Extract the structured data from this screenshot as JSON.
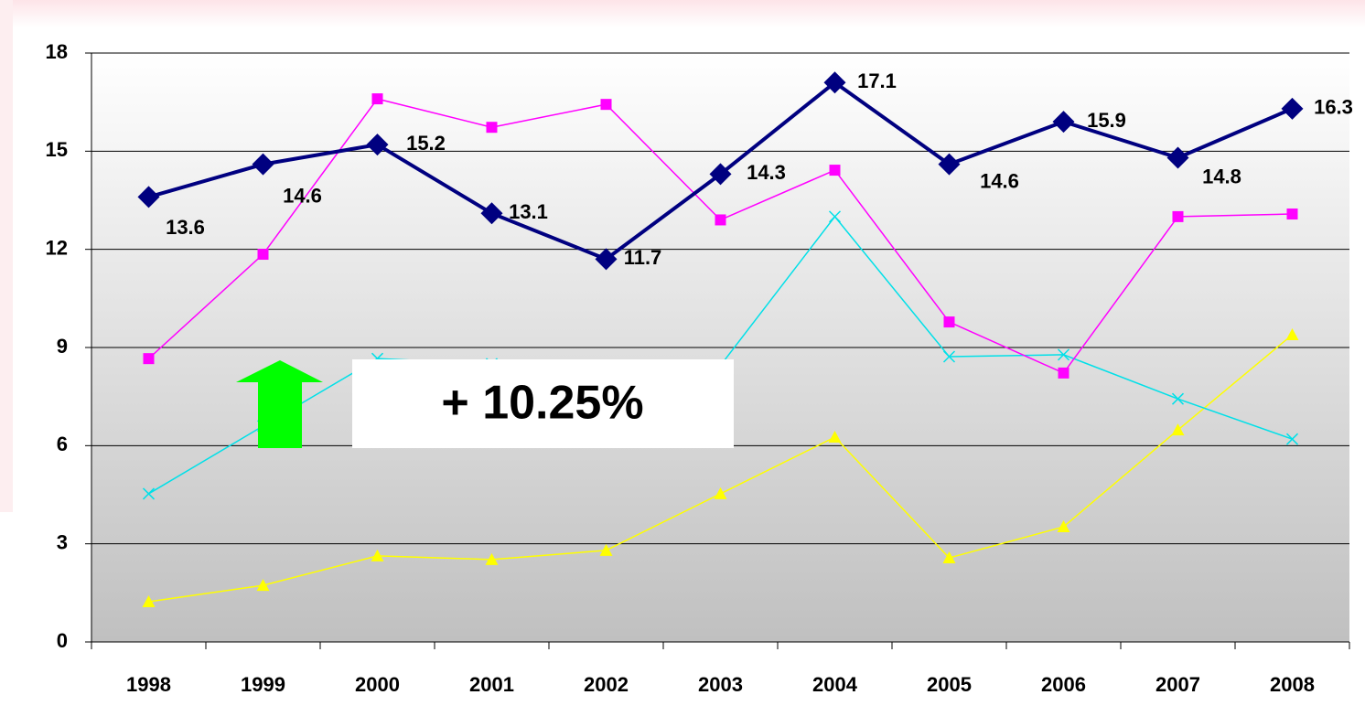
{
  "chart_data": {
    "type": "line",
    "categories": [
      "1998",
      "1999",
      "2000",
      "2001",
      "2002",
      "2003",
      "2004",
      "2005",
      "2006",
      "2007",
      "2008"
    ],
    "series": [
      {
        "color": "#000080",
        "marker": "diamond",
        "width": 4,
        "show_labels": true,
        "values": [
          13.6,
          14.6,
          15.2,
          13.1,
          11.7,
          14.3,
          17.1,
          14.6,
          15.9,
          14.8,
          16.3
        ]
      },
      {
        "color": "#ff00ff",
        "marker": "square",
        "width": 1.5,
        "values": [
          8.66,
          11.85,
          16.6,
          15.73,
          16.43,
          12.9,
          14.42,
          9.78,
          8.22,
          13.0,
          13.08
        ]
      },
      {
        "color": "#00e0e8",
        "marker": "x",
        "width": 1.5,
        "values": [
          4.53,
          6.6,
          8.66,
          8.5,
          8.3,
          8.45,
          13.0,
          8.72,
          8.78,
          7.43,
          6.2
        ]
      },
      {
        "color": "#ffff00",
        "marker": "triangle",
        "width": 1.5,
        "values": [
          1.23,
          1.73,
          2.63,
          2.52,
          2.8,
          4.53,
          6.26,
          2.57,
          3.52,
          6.48,
          9.39
        ]
      }
    ],
    "annotation": "+ 10.25%",
    "ylim": [
      0,
      18
    ],
    "yticks": [
      0,
      3,
      6,
      9,
      12,
      15,
      18
    ],
    "grid": true
  }
}
